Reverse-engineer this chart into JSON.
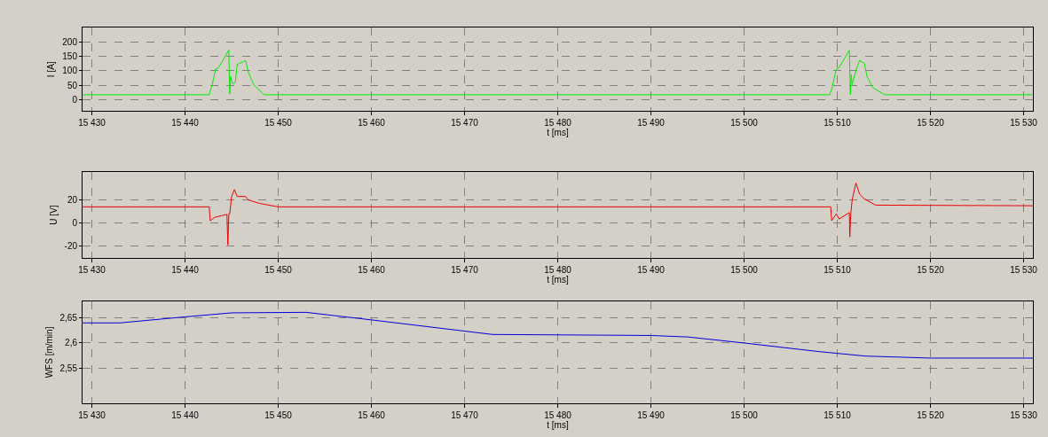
{
  "chart_data": [
    {
      "type": "line",
      "xlabel": "t [ms]",
      "ylabel": "I [A]",
      "grid": true,
      "x": [
        15429,
        15442.6,
        15442.7,
        15442.9,
        15443.3,
        15443.6,
        15444.7,
        15444.8,
        15444.9,
        15445.1,
        15445.4,
        15445.6,
        15446.5,
        15446.8,
        15447.4,
        15448.5,
        15509.2,
        15509.4,
        15509.9,
        15510.2,
        15511.3,
        15511.4,
        15511.5,
        15511.6,
        15512.0,
        15512.4,
        15512.9,
        15513.2,
        15513.8,
        15515.1,
        15531
      ],
      "series": [
        {
          "color": "#00ee00",
          "values": [
            17,
            17,
            30,
            50,
            107,
            110,
            172,
            20,
            80,
            55,
            60,
            122,
            135,
            95,
            50,
            17,
            17,
            37,
            106,
            111,
            171,
            17,
            87,
            52,
            101,
            136,
            126,
            81,
            42,
            17,
            17
          ]
        }
      ],
      "xlim": [
        15429,
        15531
      ],
      "ylim": [
        -40,
        250
      ],
      "xticks": [
        {
          "value": 15430,
          "label": "15 430"
        },
        {
          "value": 15440,
          "label": "15 440"
        },
        {
          "value": 15450,
          "label": "15 450"
        },
        {
          "value": 15460,
          "label": "15 460"
        },
        {
          "value": 15470,
          "label": "15 470"
        },
        {
          "value": 15480,
          "label": "15 480"
        },
        {
          "value": 15490,
          "label": "15 490"
        },
        {
          "value": 15500,
          "label": "15 500"
        },
        {
          "value": 15510,
          "label": "15 510"
        },
        {
          "value": 15520,
          "label": "15 520"
        },
        {
          "value": 15530,
          "label": "15 530"
        }
      ],
      "yticks": [
        0,
        50,
        100,
        150,
        200
      ]
    },
    {
      "type": "line",
      "xlabel": "t [ms]",
      "ylabel": "U [V]",
      "grid": true,
      "x": [
        15429,
        15442.6,
        15442.7,
        15443.2,
        15444.5,
        15444.6,
        15444.7,
        15444.8,
        15445.0,
        15445.3,
        15445.6,
        15446.5,
        15446.8,
        15448.0,
        15449.0,
        15450.0,
        15509.3,
        15509.4,
        15509.9,
        15510.2,
        15511.3,
        15511.35,
        15511.45,
        15511.6,
        15512.0,
        15512.4,
        15512.9,
        15514.1,
        15531
      ],
      "series": [
        {
          "color": "#ee0000",
          "values": [
            14,
            14,
            2,
            5,
            7.5,
            -19,
            8,
            8,
            23,
            29,
            23,
            23,
            20,
            17,
            15.5,
            14,
            14,
            2,
            8,
            3.5,
            9,
            -12,
            8,
            20,
            34.6,
            25,
            21,
            15.5,
            15
          ]
        }
      ],
      "xlim": [
        15429,
        15531
      ],
      "ylim": [
        -30,
        44
      ],
      "xticks": [
        {
          "value": 15430,
          "label": "15 430"
        },
        {
          "value": 15440,
          "label": "15 440"
        },
        {
          "value": 15450,
          "label": "15 450"
        },
        {
          "value": 15460,
          "label": "15 460"
        },
        {
          "value": 15470,
          "label": "15 470"
        },
        {
          "value": 15480,
          "label": "15 480"
        },
        {
          "value": 15490,
          "label": "15 490"
        },
        {
          "value": 15500,
          "label": "15 500"
        },
        {
          "value": 15510,
          "label": "15 510"
        },
        {
          "value": 15520,
          "label": "15 520"
        },
        {
          "value": 15530,
          "label": "15 530"
        }
      ],
      "yticks": [
        -20,
        0,
        20
      ]
    },
    {
      "type": "line",
      "xlabel": "t [ms]",
      "ylabel": "WFS [m/min]",
      "grid": true,
      "x": [
        15429,
        15433,
        15440,
        15445,
        15453,
        15460,
        15473,
        15490,
        15494,
        15500,
        15508,
        15513,
        15520,
        15531
      ],
      "series": [
        {
          "color": "#0000dd",
          "values": [
            2.64,
            2.64,
            2.652,
            2.66,
            2.661,
            2.646,
            2.617,
            2.615,
            2.612,
            2.6,
            2.583,
            2.574,
            2.57,
            2.57
          ]
        }
      ],
      "xlim": [
        15429,
        15531
      ],
      "ylim": [
        2.48,
        2.683
      ],
      "xticks": [
        {
          "value": 15430,
          "label": "15 430"
        },
        {
          "value": 15440,
          "label": "15 440"
        },
        {
          "value": 15450,
          "label": "15 450"
        },
        {
          "value": 15460,
          "label": "15 460"
        },
        {
          "value": 15470,
          "label": "15 470"
        },
        {
          "value": 15480,
          "label": "15 480"
        },
        {
          "value": 15490,
          "label": "15 490"
        },
        {
          "value": 15500,
          "label": "15 500"
        },
        {
          "value": 15510,
          "label": "15 510"
        },
        {
          "value": 15520,
          "label": "15 520"
        },
        {
          "value": 15530,
          "label": "15 530"
        }
      ],
      "yticks": [
        {
          "value": 2.55,
          "label": "2,55"
        },
        {
          "value": 2.6,
          "label": "2,6"
        },
        {
          "value": 2.65,
          "label": "2,65"
        }
      ]
    }
  ]
}
